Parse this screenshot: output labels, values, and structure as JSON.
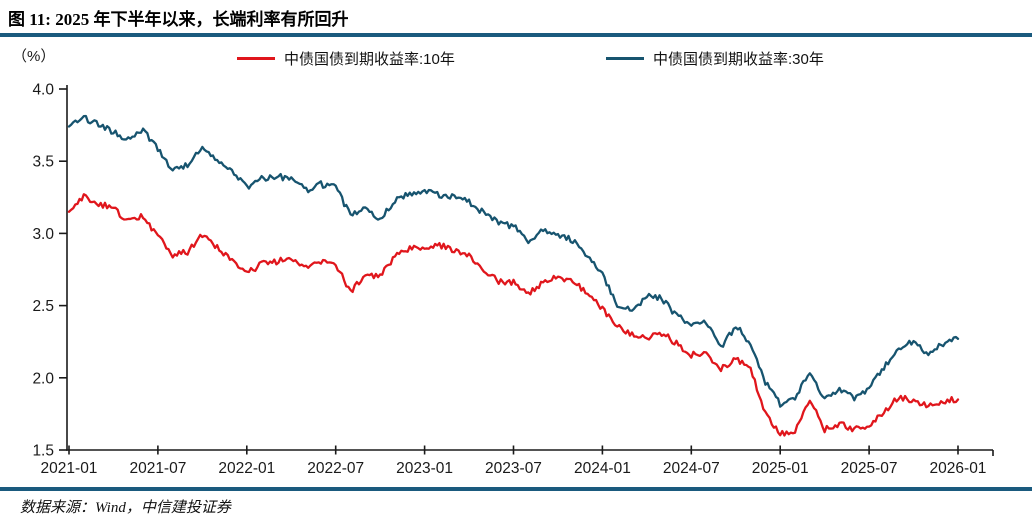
{
  "header": {
    "title": "图 11: 2025 年下半年以来，长端利率有所回升"
  },
  "footer": {
    "source": "数据来源：Wind，中信建投证券"
  },
  "colors": {
    "accent_rule": "#1A5A7E",
    "axis": "#1a1a1a",
    "series_10y": "#E0161C",
    "series_30y": "#17546F"
  },
  "chart_data": {
    "type": "line",
    "title": "图 11: 2025 年下半年以来，长端利率有所回升",
    "unit_label": "（%）",
    "xlabel": "",
    "ylabel": "(%)",
    "ylim": [
      1.5,
      4.0
    ],
    "grid": false,
    "legend_position": "top",
    "x_range": [
      "2021-01",
      "2026-01"
    ],
    "frequency": "monthly",
    "x_tick_labels": [
      "2021-01",
      "2021-07",
      "2022-01",
      "2022-07",
      "2023-01",
      "2023-07",
      "2024-01",
      "2024-07",
      "2025-01",
      "2025-07",
      "2026-01"
    ],
    "y_tick_labels": [
      "4.0",
      "3.5",
      "3.0",
      "2.5",
      "2.0",
      "1.5"
    ],
    "series": [
      {
        "name": "中债国债到期收益率:10年",
        "color": "#E0161C",
        "values": [
          3.15,
          3.26,
          3.2,
          3.18,
          3.08,
          3.12,
          2.98,
          2.85,
          2.87,
          2.99,
          2.9,
          2.82,
          2.72,
          2.79,
          2.8,
          2.84,
          2.76,
          2.8,
          2.78,
          2.6,
          2.7,
          2.7,
          2.84,
          2.89,
          2.91,
          2.92,
          2.88,
          2.85,
          2.74,
          2.67,
          2.66,
          2.58,
          2.66,
          2.7,
          2.67,
          2.58,
          2.48,
          2.36,
          2.3,
          2.28,
          2.31,
          2.24,
          2.16,
          2.17,
          2.06,
          2.13,
          2.06,
          1.76,
          1.61,
          1.64,
          1.86,
          1.64,
          1.68,
          1.64,
          1.67,
          1.76,
          1.87,
          1.84,
          1.8,
          1.84,
          1.85
        ]
      },
      {
        "name": "中债国债到期收益率:30年",
        "color": "#17546F",
        "values": [
          3.74,
          3.8,
          3.76,
          3.7,
          3.65,
          3.72,
          3.58,
          3.44,
          3.48,
          3.6,
          3.5,
          3.42,
          3.32,
          3.38,
          3.4,
          3.37,
          3.3,
          3.34,
          3.32,
          3.12,
          3.17,
          3.1,
          3.23,
          3.27,
          3.29,
          3.27,
          3.25,
          3.22,
          3.14,
          3.07,
          3.05,
          2.94,
          3.02,
          2.99,
          2.95,
          2.84,
          2.72,
          2.5,
          2.46,
          2.57,
          2.55,
          2.43,
          2.37,
          2.38,
          2.2,
          2.36,
          2.24,
          1.97,
          1.82,
          1.86,
          2.05,
          1.85,
          1.91,
          1.86,
          1.93,
          2.07,
          2.2,
          2.25,
          2.15,
          2.24,
          2.27
        ]
      }
    ]
  }
}
